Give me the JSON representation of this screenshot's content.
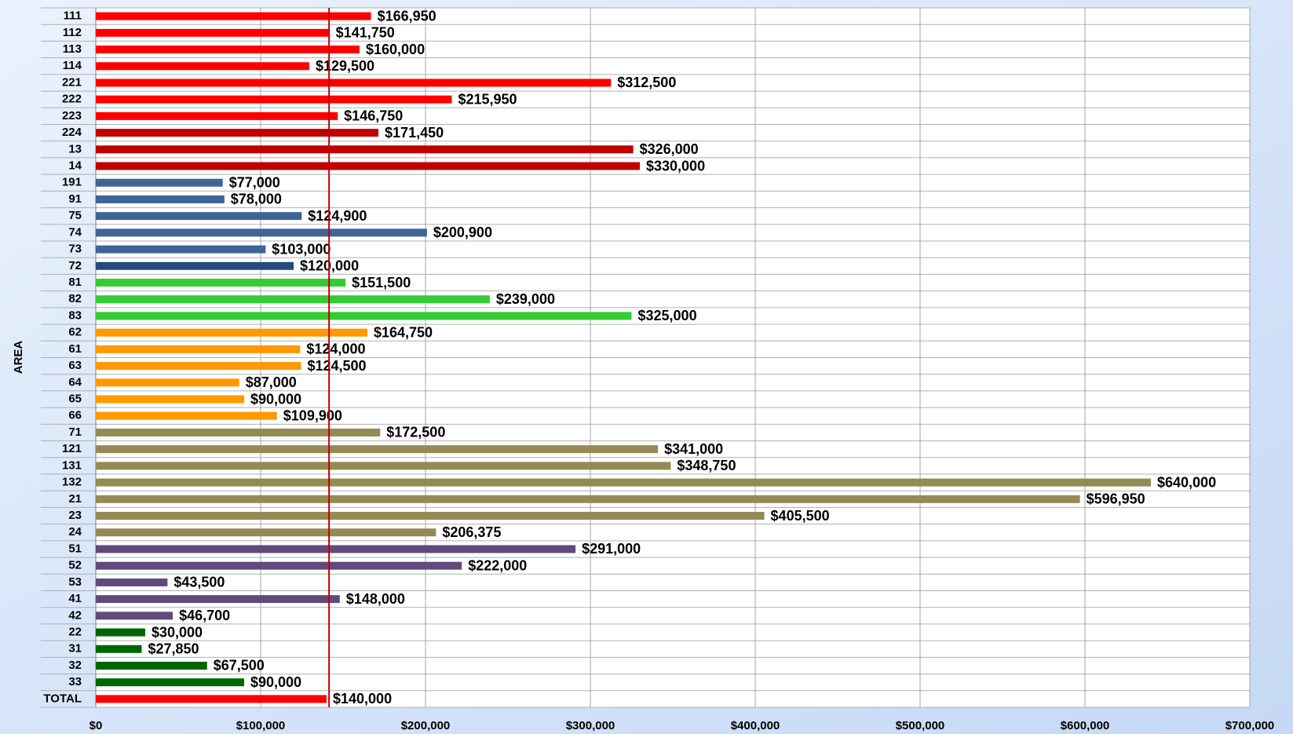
{
  "chart_data": {
    "type": "barh",
    "y_label": "AREA",
    "categories": [
      "111",
      "112",
      "113",
      "114",
      "221",
      "222",
      "223",
      "224",
      "13",
      "14",
      "191",
      "91",
      "75",
      "74",
      "73",
      "72",
      "81",
      "82",
      "83",
      "62",
      "61",
      "63",
      "64",
      "65",
      "66",
      "71",
      "121",
      "131",
      "132",
      "21",
      "23",
      "24",
      "51",
      "52",
      "53",
      "41",
      "42",
      "22",
      "31",
      "32",
      "33",
      "TOTAL"
    ],
    "values": [
      166950,
      141750,
      160000,
      129500,
      312500,
      215950,
      146750,
      171450,
      326000,
      330000,
      77000,
      78000,
      124900,
      200900,
      103000,
      120000,
      151500,
      239000,
      325000,
      164750,
      124000,
      124500,
      87000,
      90000,
      109900,
      172500,
      341000,
      348750,
      640000,
      596950,
      405500,
      206375,
      291000,
      222000,
      43500,
      148000,
      46700,
      30000,
      27850,
      67500,
      90000,
      140000
    ],
    "value_labels": [
      "$166,950",
      "$141,750",
      "$160,000",
      "$129,500",
      "$312,500",
      "$215,950",
      "$146,750",
      "$171,450",
      "$326,000",
      "$330,000",
      "$77,000",
      "$78,000",
      "$124,900",
      "$200,900",
      "$103,000",
      "$120,000",
      "$151,500",
      "$239,000",
      "$325,000",
      "$164,750",
      "$124,000",
      "$124,500",
      "$87,000",
      "$90,000",
      "$109,900",
      "$172,500",
      "$341,000",
      "$348,750",
      "$640,000",
      "$596,950",
      "$405,500",
      "$206,375",
      "$291,000",
      "$222,000",
      "$43,500",
      "$148,000",
      "$46,700",
      "$30,000",
      "$27,850",
      "$67,500",
      "$90,000",
      "$140,000"
    ],
    "colors": [
      "#ff0000",
      "#ff0000",
      "#ff0000",
      "#ff0000",
      "#ff0000",
      "#ff0000",
      "#ff0000",
      "#c00000",
      "#c00000",
      "#c00000",
      "#3f6496",
      "#3f6496",
      "#3f6496",
      "#3f6496",
      "#3f6496",
      "#254a7c",
      "#33cc33",
      "#33cc33",
      "#33cc33",
      "#ff9900",
      "#ff9900",
      "#ff9900",
      "#ff9900",
      "#ff9900",
      "#ff9900",
      "#948a54",
      "#948a54",
      "#948a54",
      "#948a54",
      "#948a54",
      "#948a54",
      "#948a54",
      "#604a7b",
      "#604a7b",
      "#604a7b",
      "#604a7b",
      "#604a7b",
      "#006600",
      "#006600",
      "#006600",
      "#006600",
      "#ff0000"
    ],
    "xlim": [
      0,
      700000
    ],
    "xticks": [
      {
        "value": 0,
        "label": "$0"
      },
      {
        "value": 100000,
        "label": "$100,000"
      },
      {
        "value": 200000,
        "label": "$200,000"
      },
      {
        "value": 300000,
        "label": "$300,000"
      },
      {
        "value": 400000,
        "label": "$400,000"
      },
      {
        "value": 500000,
        "label": "$500,000"
      },
      {
        "value": 600000,
        "label": "$600,000"
      },
      {
        "value": 700000,
        "label": "$700,000"
      }
    ],
    "grid": true,
    "reference_line": {
      "value": 141500,
      "color": "#c00000"
    }
  }
}
